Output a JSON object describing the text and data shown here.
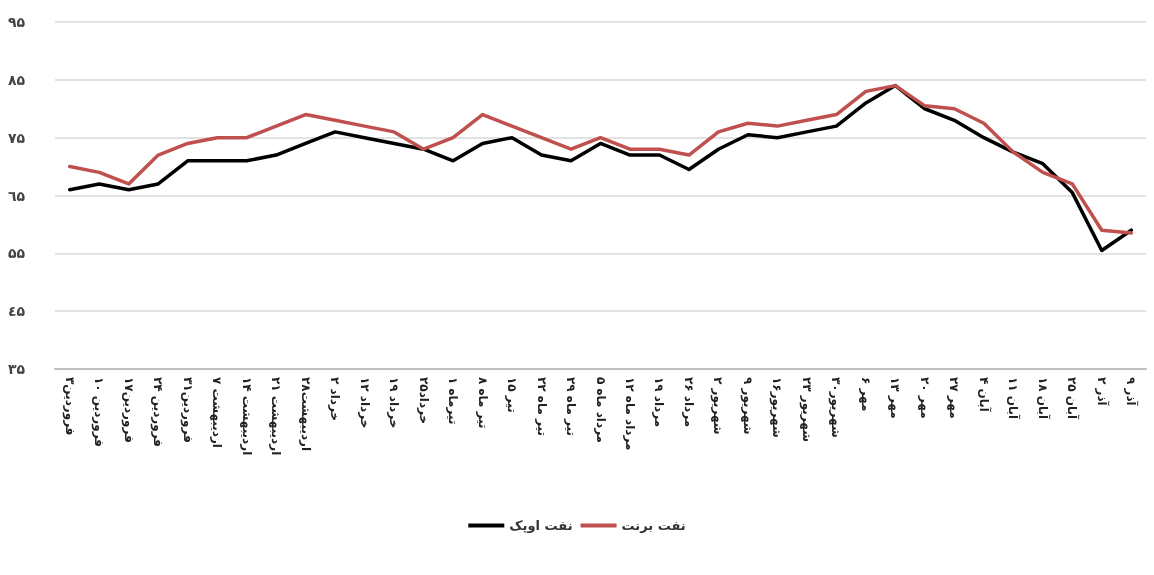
{
  "chart_data": {
    "type": "line",
    "categories": [
      "۳فروردین",
      "۱۰ فروردین",
      "۱۷فروردین",
      "۲۴ فروردین",
      "۳۱فروردین",
      "۷ اردیبهشت",
      "۱۴ اردیبهشت",
      "۲۱ اردیبهشت",
      "۲۸اردیبهشت",
      "۲ خرداد",
      "۱۲ خرداد",
      "۱۹ خرداد",
      "۲۵خرداد",
      "۱ تیرماه",
      "۸ تیر ماه",
      "۱۵ تیر",
      "۲۲ تیر ماه",
      "۲۹ تیر ماه",
      "۵ مرداد ماه",
      "۱۲ مرداد ماه",
      "۱۹ مرداد",
      "۲۶ مرداد",
      "۲ شهریور",
      "۹ شهریور",
      "۱۶شهریور",
      "۲۳ شهریور",
      "۳۰شهریور",
      "۶ مهر",
      "۱۳ مهر",
      "۲۰ مهر",
      "۲۷ مهر",
      "۴ آبان",
      "۱۱ آبان",
      "۱۸ آبان",
      "۲۵ آبان",
      "۲ آذر",
      "۹ آذر"
    ],
    "series": [
      {
        "name": "نفت اوپک",
        "color": "#000000",
        "values": [
          66,
          67,
          66,
          67,
          71,
          71,
          71,
          72,
          74,
          76,
          75,
          74,
          73,
          71,
          74,
          75,
          72,
          71,
          74,
          72,
          72,
          69.5,
          73,
          75.5,
          75,
          76,
          77,
          81,
          84,
          80,
          78,
          75,
          72.5,
          70.5,
          65.5,
          55.5,
          59
        ]
      },
      {
        "name": "نفت برنت",
        "color": "#c0504d",
        "values": [
          70,
          69,
          67,
          72,
          74,
          75,
          75,
          77,
          79,
          78,
          77,
          76,
          73,
          75,
          79,
          77,
          75,
          73,
          75,
          73,
          73,
          72,
          76,
          77.5,
          77,
          78,
          79,
          83,
          84,
          80.5,
          80,
          77.5,
          72.5,
          69,
          67,
          59,
          58.5
        ]
      }
    ],
    "ylim": [
      35,
      95
    ],
    "yticks": [
      {
        "value": 35,
        "label": "۳۵"
      },
      {
        "value": 45,
        "label": "٤۵"
      },
      {
        "value": 55,
        "label": "۵۵"
      },
      {
        "value": 65,
        "label": "٦۵"
      },
      {
        "value": 75,
        "label": "۷۵"
      },
      {
        "value": 85,
        "label": "۸۵"
      },
      {
        "value": 95,
        "label": "۹۵"
      }
    ],
    "grid": "y",
    "legend": "bottom",
    "marker": "none",
    "line_style": "solid"
  }
}
